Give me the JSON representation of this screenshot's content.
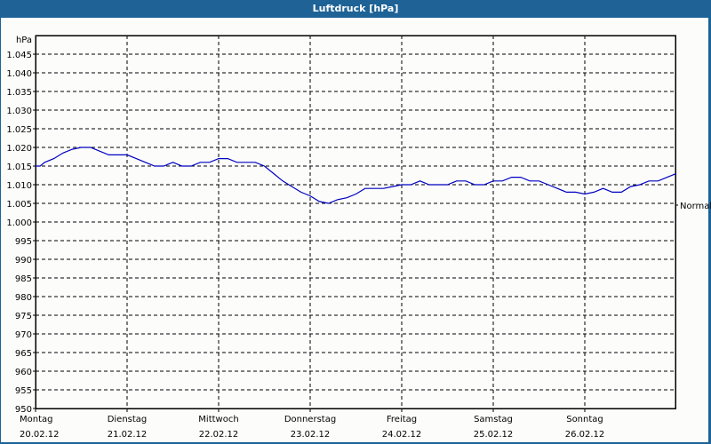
{
  "window": {
    "title": "Luftdruck [hPa]"
  },
  "colors": {
    "titlebar": "#1e6296",
    "background": "#fcfdfb",
    "line": "#0000c0",
    "grid": "#000000"
  },
  "chart_data": {
    "type": "line",
    "title": "Luftdruck [hPa]",
    "ylabel": "hPa",
    "xlabel": "",
    "ylim": [
      950,
      1050
    ],
    "y_ticks": [
      "1.045",
      "1.040",
      "1.035",
      "1.030",
      "1.025",
      "1.020",
      "1.015",
      "1.010",
      "1.005",
      "1.000",
      "995",
      "990",
      "985",
      "980",
      "975",
      "970",
      "965",
      "960",
      "955",
      "950"
    ],
    "y_tick_values": [
      1045,
      1040,
      1035,
      1030,
      1025,
      1020,
      1015,
      1010,
      1005,
      1000,
      995,
      990,
      985,
      980,
      975,
      970,
      965,
      960,
      955,
      950
    ],
    "x_ticks": [
      {
        "day": "Montag",
        "date": "20.02.12"
      },
      {
        "day": "Dienstag",
        "date": "21.02.12"
      },
      {
        "day": "Mittwoch",
        "date": "22.02.12"
      },
      {
        "day": "Donnerstag",
        "date": "23.02.12"
      },
      {
        "day": "Freitag",
        "date": "24.02.12"
      },
      {
        "day": "Samstag",
        "date": "25.02.12"
      },
      {
        "day": "Sonntag",
        "date": "26.02.12"
      }
    ],
    "reference_line": {
      "label": "Normal",
      "value": 1004.5
    },
    "grid": true,
    "series": [
      {
        "name": "Luftdruck",
        "x_days": [
          0,
          0.05,
          0.1,
          0.2,
          0.3,
          0.4,
          0.5,
          0.6,
          0.7,
          0.8,
          0.9,
          1.0,
          1.1,
          1.2,
          1.3,
          1.4,
          1.5,
          1.6,
          1.7,
          1.8,
          1.9,
          2.0,
          2.1,
          2.2,
          2.3,
          2.4,
          2.5,
          2.6,
          2.7,
          2.8,
          2.9,
          3.0,
          3.1,
          3.2,
          3.3,
          3.4,
          3.5,
          3.6,
          3.7,
          3.8,
          3.9,
          4.0,
          4.1,
          4.2,
          4.3,
          4.4,
          4.5,
          4.6,
          4.7,
          4.8,
          4.9,
          5.0,
          5.1,
          5.2,
          5.3,
          5.4,
          5.5,
          5.6,
          5.7,
          5.8,
          5.9,
          6.0,
          6.1,
          6.2,
          6.3,
          6.4,
          6.5,
          6.6,
          6.7,
          6.8,
          6.9,
          7.0
        ],
        "values": [
          1015,
          1015,
          1016,
          1017,
          1018.5,
          1019.5,
          1020,
          1020,
          1019,
          1018,
          1018,
          1018,
          1017,
          1016,
          1015,
          1015,
          1016,
          1015,
          1015,
          1016,
          1016,
          1017,
          1017,
          1016,
          1016,
          1016,
          1015,
          1013,
          1011,
          1009.5,
          1008,
          1007,
          1005.5,
          1005,
          1006,
          1006.5,
          1007.5,
          1009,
          1009,
          1009,
          1009.5,
          1010,
          1010,
          1011,
          1010,
          1010,
          1010,
          1011,
          1011,
          1010,
          1010,
          1011,
          1011,
          1012,
          1012,
          1011,
          1011,
          1010,
          1009,
          1008,
          1008,
          1007.5,
          1008,
          1009,
          1008,
          1008,
          1009.5,
          1010,
          1011,
          1011,
          1012,
          1013
        ]
      }
    ]
  }
}
